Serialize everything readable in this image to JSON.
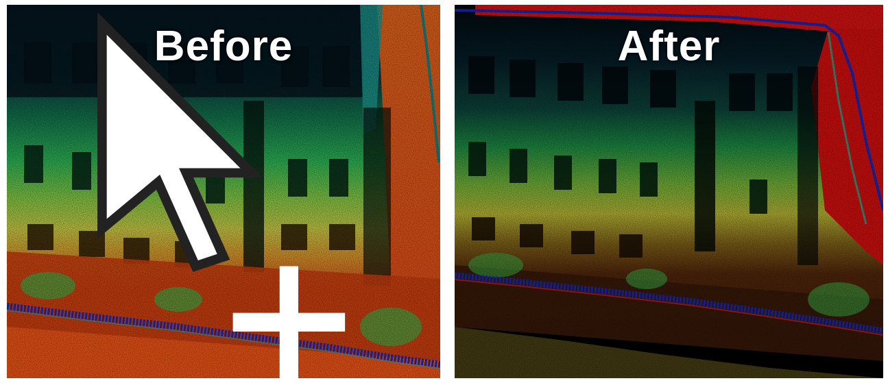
{
  "comparison": {
    "before_label": "Before",
    "after_label": "After"
  },
  "colors": {
    "high_elevation": "#0a2a3a",
    "mid_high": "#1fae5a",
    "mid": "#b9d64a",
    "low": "#e0461a",
    "ground": "#ff4a12",
    "curb": "#1a2cc8",
    "background": "#000000"
  },
  "icons": {
    "pointer": "mouse-pointer-icon",
    "move": "move-crosshair-icon"
  }
}
